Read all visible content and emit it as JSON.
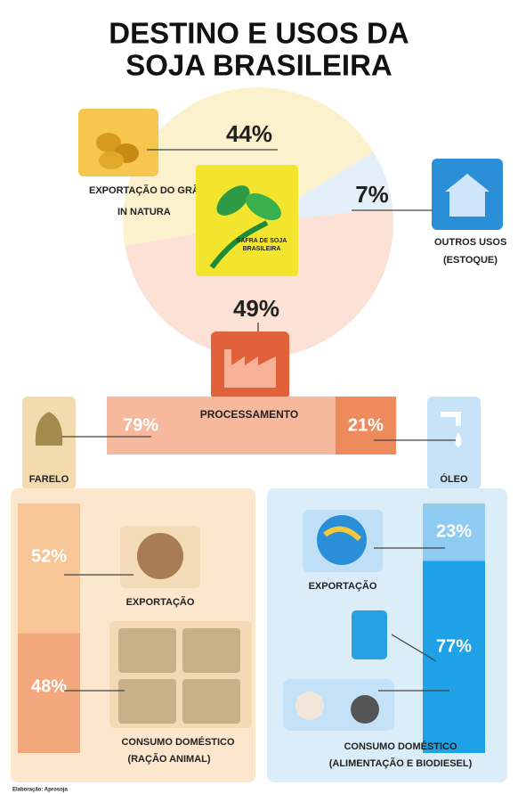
{
  "header": {
    "title": [
      "DESTINO E USOS DA",
      "SOJA BRASILEIRA"
    ]
  },
  "destination": {
    "center_label": [
      "SAFRA DE SOJA",
      "BRASILEIRA"
    ],
    "slices": [
      {
        "label": [
          "EXPORTAÇÃO DO GRÃO",
          "IN NATURA"
        ],
        "value": 44,
        "value_label": "44%",
        "color": "#fbf1cc"
      },
      {
        "label": [
          "OUTROS USOS",
          "(ESTOQUE)"
        ],
        "value": 7,
        "value_label": "7%",
        "color": "#e3f0f9"
      },
      {
        "value": 49,
        "value_label": "49%",
        "color": "#fbe1d6"
      }
    ]
  },
  "processing": {
    "label": "PROCESSAMENTO",
    "split": [
      {
        "label": "FARELO",
        "value": 79,
        "value_label": "79%",
        "color": "#f7b99d"
      },
      {
        "label": "ÓLEO",
        "value": 21,
        "value_label": "21%",
        "color": "#ee8b5c"
      }
    ]
  },
  "farelo_uses": [
    {
      "label": [
        "EXPORTAÇÃO"
      ],
      "value": 52,
      "value_label": "52%",
      "color": "#f7c696"
    },
    {
      "label": [
        "CONSUMO DOMÉSTICO",
        "(RAÇÃO ANIMAL)"
      ],
      "value": 48,
      "value_label": "48%",
      "color": "#f2a87c"
    }
  ],
  "oleo_uses": [
    {
      "label": [
        "EXPORTAÇÃO"
      ],
      "value": 23,
      "value_label": "23%",
      "color": "#8fcbf1"
    },
    {
      "label": [
        "CONSUMO DOMÉSTICO",
        "(ALIMENTAÇÃO E BIODIESEL)"
      ],
      "value": 77,
      "value_label": "77%",
      "color": "#1fa1e8"
    }
  ],
  "footer": {
    "source": "Elaboração: Aprosoja"
  }
}
